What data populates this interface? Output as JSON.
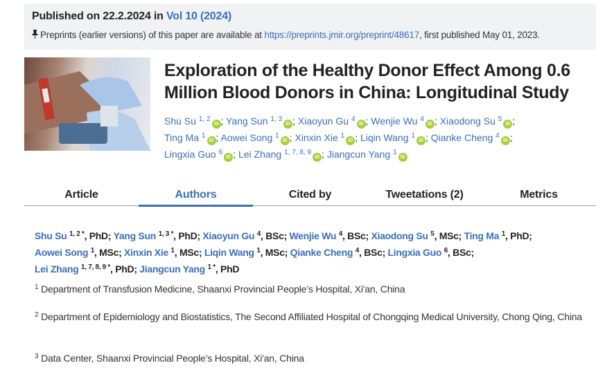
{
  "publication": {
    "prefix": "Published on 22.2.2024 in ",
    "volume": "Vol 10 (2024)",
    "preprint_text": "Preprints (earlier versions) of this paper are available at ",
    "preprint_url": "https://preprints.jmir.org/preprint/48617",
    "preprint_suffix": ", first published May 01, 2023."
  },
  "title": "Exploration of the Healthy Donor Effect Among 0.6 Million Blood Donors in China: Longitudinal Study",
  "authors": [
    {
      "name": "Shu Su",
      "aff": "1, 2",
      "deg": "PhD",
      "corr": true
    },
    {
      "name": "Yang Sun",
      "aff": "1, 3",
      "deg": "PhD",
      "corr": true
    },
    {
      "name": "Xiaoyun Gu",
      "aff": "4",
      "deg": "BSc",
      "corr": false
    },
    {
      "name": "Wenjie Wu",
      "aff": "4",
      "deg": "BSc",
      "corr": false
    },
    {
      "name": "Xiaodong Su",
      "aff": "5",
      "deg": "MSc",
      "corr": false
    },
    {
      "name": "Ting Ma",
      "aff": "1",
      "deg": "PhD",
      "corr": false
    },
    {
      "name": "Aowei Song",
      "aff": "1",
      "deg": "MSc",
      "corr": false
    },
    {
      "name": "Xinxin Xie",
      "aff": "1",
      "deg": "MSc",
      "corr": false
    },
    {
      "name": "Liqin Wang",
      "aff": "1",
      "deg": "MSc",
      "corr": false
    },
    {
      "name": "Qianke Cheng",
      "aff": "4",
      "deg": "BSc",
      "corr": false
    },
    {
      "name": "Lingxia Guo",
      "aff": "6",
      "deg": "BSc",
      "corr": false
    },
    {
      "name": "Lei Zhang",
      "aff": "1, 7, 8, 9",
      "deg": "PhD",
      "corr": true
    },
    {
      "name": "Jiangcun Yang",
      "aff": "1",
      "deg": "PhD",
      "corr": true
    }
  ],
  "orcid_label": "iD",
  "tabs": [
    {
      "label": "Article"
    },
    {
      "label": "Authors",
      "active": true
    },
    {
      "label": "Cited by"
    },
    {
      "label": "Tweetations (2)"
    },
    {
      "label": "Metrics"
    }
  ],
  "affiliations": [
    {
      "num": "1",
      "text": "Department of Transfusion Medicine, Shaanxi Provincial People’s Hospital, Xi'an, China"
    },
    {
      "num": "2",
      "text": "Department of Epidemiology and Biostatistics, The Second Affiliated Hospital of Chongqing Medical University, Chong Qing, China"
    },
    {
      "num": "3",
      "text": "Data Center, Shaanxi Provincial People’s Hospital, Xi'an, China"
    }
  ],
  "colors": {
    "link": "#3a6fb8",
    "orcid": "#a6ce39",
    "banner": "#f1f2f4"
  }
}
